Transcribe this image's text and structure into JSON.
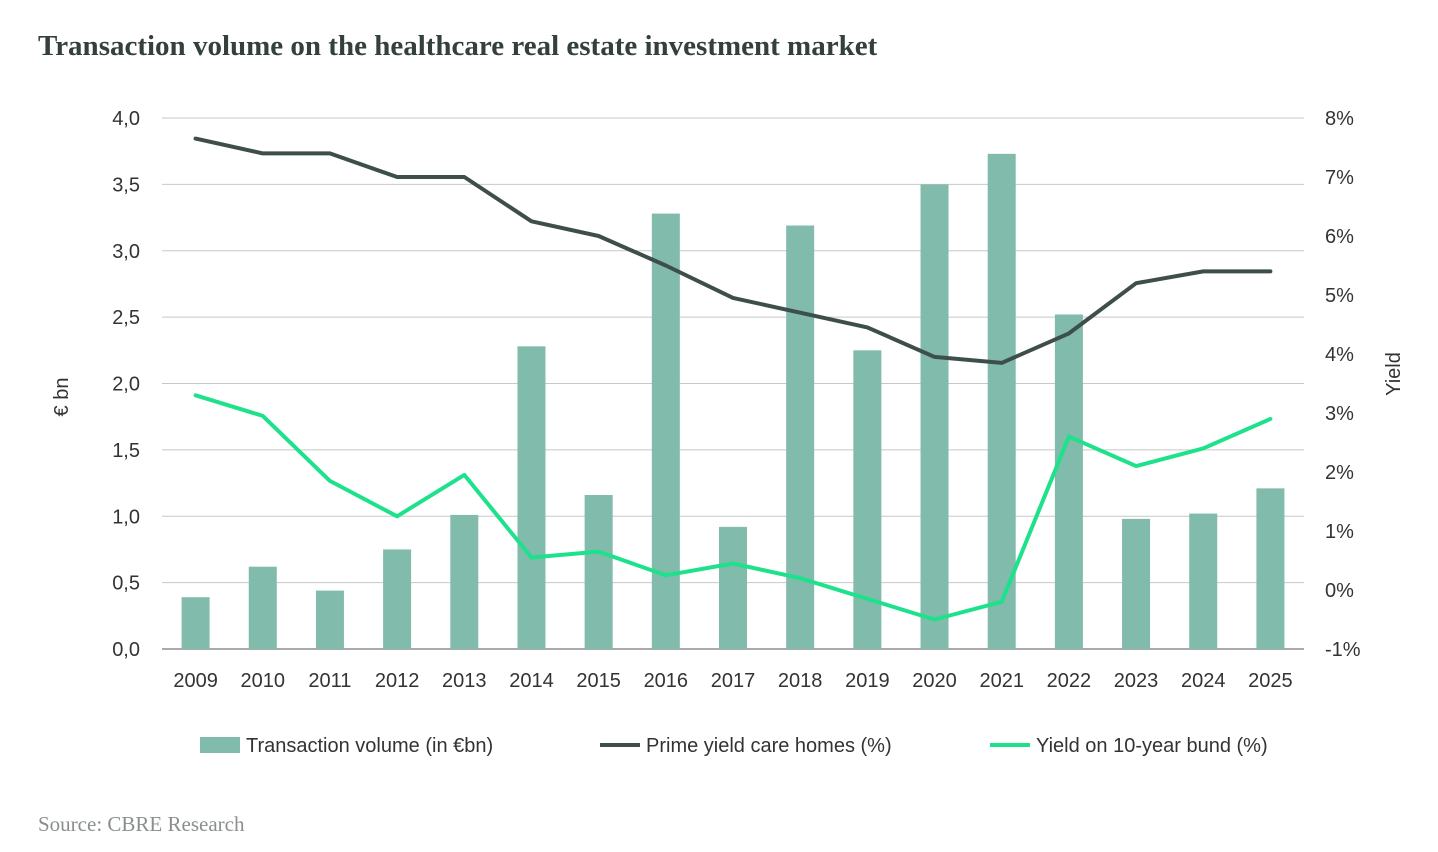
{
  "title": "Transaction volume on the healthcare real estate investment market",
  "source": "Source: CBRE Research",
  "chart_data": {
    "type": "bar",
    "categories": [
      "2009",
      "2010",
      "2011",
      "2012",
      "2013",
      "2014",
      "2015",
      "2016",
      "2017",
      "2018",
      "2019",
      "2020",
      "2021",
      "2022",
      "2023",
      "2024",
      "2025"
    ],
    "ylabel": "€ bn",
    "y2label": "Yield",
    "ylim": [
      0,
      4
    ],
    "y2lim": [
      -1,
      8
    ],
    "y_ticks": [
      "0,0",
      "0,5",
      "1,0",
      "1,5",
      "2,0",
      "2,5",
      "3,0",
      "3,5",
      "4,0"
    ],
    "y2_ticks": [
      "-1%",
      "0%",
      "1%",
      "2%",
      "3%",
      "4%",
      "5%",
      "6%",
      "7%",
      "8%"
    ],
    "grid": true,
    "legend_position": "bottom",
    "series": [
      {
        "name": "Transaction volume (in €bn)",
        "type": "bar",
        "axis": "left",
        "color": "#80bbab",
        "values": [
          0.39,
          0.62,
          0.44,
          0.75,
          1.01,
          2.28,
          1.16,
          3.28,
          0.92,
          3.19,
          2.25,
          3.5,
          3.73,
          2.52,
          0.98,
          1.02,
          1.21
        ]
      },
      {
        "name": "Prime yield care homes (%)",
        "type": "line",
        "axis": "right",
        "color": "#3e4e4b",
        "values": [
          7.65,
          7.4,
          7.4,
          7.0,
          7.0,
          6.25,
          6.0,
          5.5,
          4.95,
          4.7,
          4.45,
          3.95,
          3.85,
          4.35,
          5.2,
          5.4,
          5.4
        ]
      },
      {
        "name": "Yield on 10-year bund (%)",
        "type": "line",
        "axis": "right",
        "color": "#1ee18c",
        "values": [
          3.3,
          2.95,
          1.85,
          1.25,
          1.95,
          0.55,
          0.65,
          0.25,
          0.45,
          0.2,
          -0.15,
          -0.5,
          -0.2,
          2.6,
          2.1,
          2.4,
          2.9
        ]
      }
    ]
  }
}
